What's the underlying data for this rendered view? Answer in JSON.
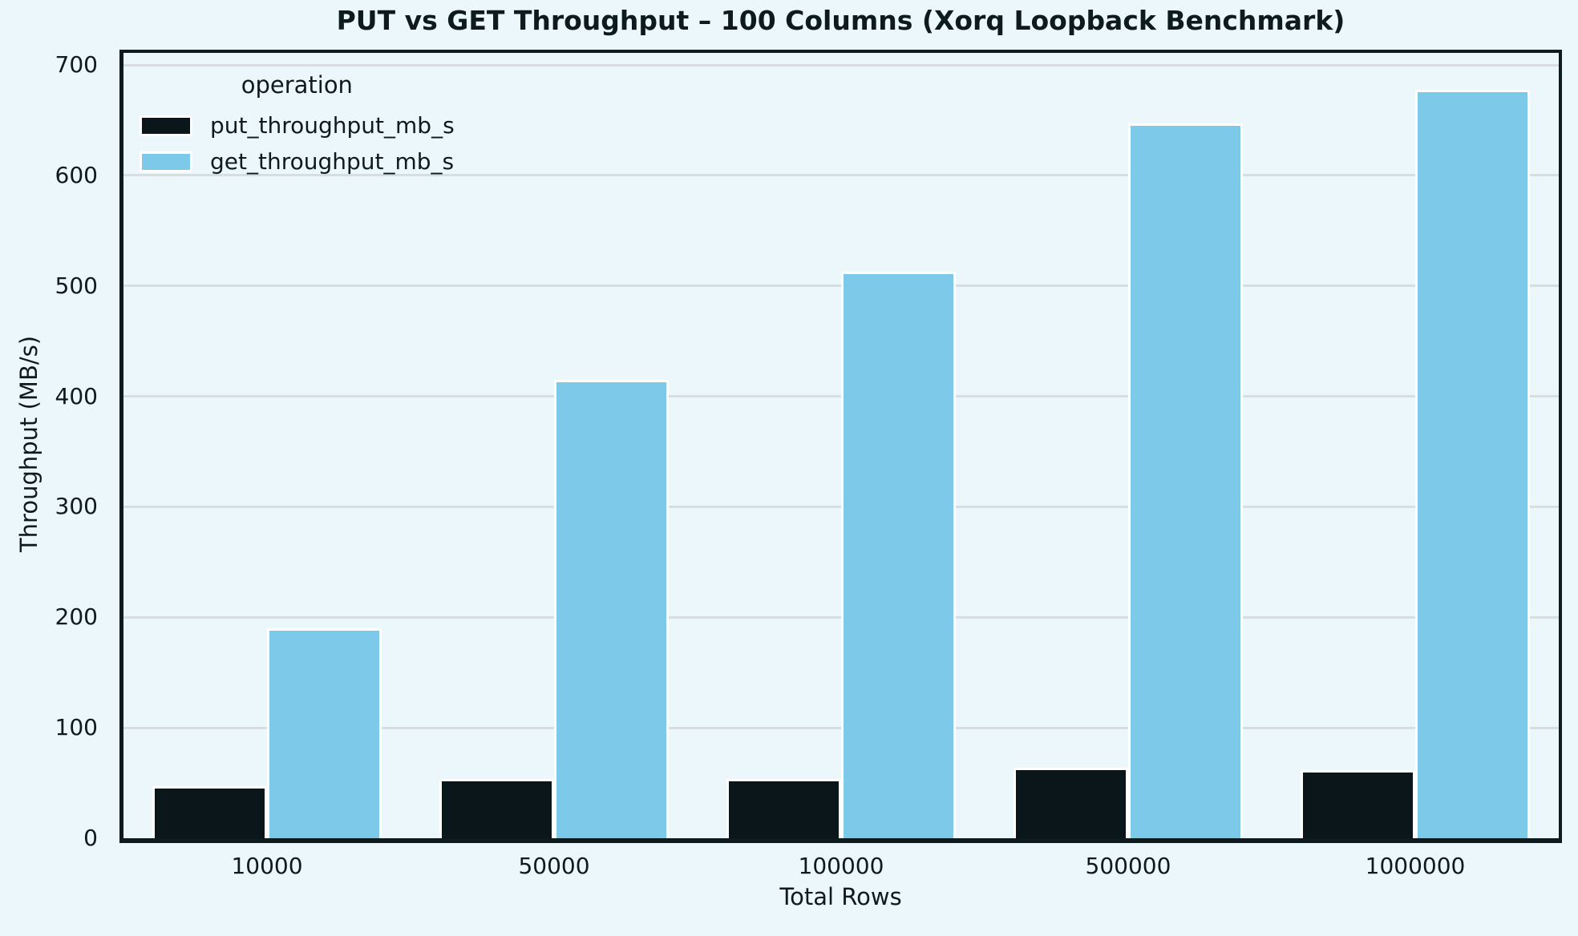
{
  "title": "PUT vs GET Throughput – 100 Columns (Xorq Loopback Benchmark)",
  "colors": {
    "background": "#ecf7fc",
    "text": "#0d1b1e",
    "grid": "#d9dde0",
    "spine": "#0d1b1e",
    "bar_edge": "#ffffff",
    "put_series": "#0b161a",
    "get_series": "#7dc9e9"
  },
  "chart_data": {
    "type": "bar",
    "title": "PUT vs GET Throughput – 100 Columns (Xorq Loopback Benchmark)",
    "xlabel": "Total Rows",
    "ylabel": "Throughput (MB/s)",
    "legend_title": "operation",
    "legend_position": "upper left",
    "grid": "horizontal",
    "categories": [
      "10000",
      "50000",
      "100000",
      "500000",
      "1000000"
    ],
    "series": [
      {
        "name": "put_throughput_mb_s",
        "color": "#0b161a",
        "values": [
          47,
          54,
          54,
          64,
          62
        ]
      },
      {
        "name": "get_throughput_mb_s",
        "color": "#7dc9e9",
        "values": [
          190,
          415,
          513,
          647,
          678
        ]
      }
    ],
    "yticks": [
      0,
      100,
      200,
      300,
      400,
      500,
      600,
      700
    ],
    "ylim": [
      0,
      711
    ]
  }
}
